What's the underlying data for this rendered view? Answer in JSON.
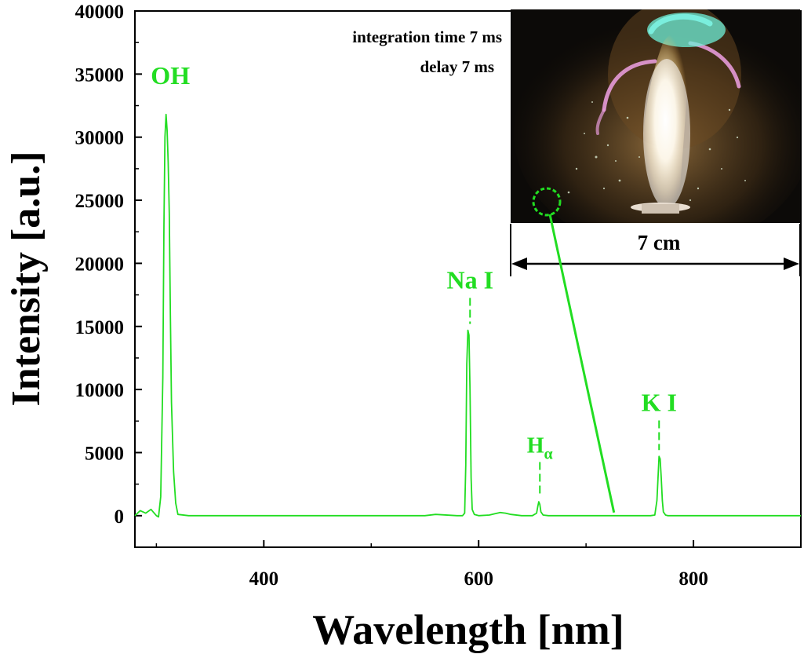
{
  "chart_data": {
    "type": "line",
    "xlabel": "Wavelength [nm]",
    "ylabel": "Intensity [a.u.]",
    "xlim": [
      280,
      900
    ],
    "ylim": [
      -2500,
      40000
    ],
    "x_ticks": [
      400,
      600,
      800
    ],
    "x_tick_labels": [
      "400",
      "600",
      "800"
    ],
    "y_ticks": [
      0,
      5000,
      10000,
      15000,
      20000,
      25000,
      30000,
      35000,
      40000
    ],
    "y_tick_labels": [
      "0",
      "5000",
      "10000",
      "15000",
      "20000",
      "25000",
      "30000",
      "35000",
      "40000"
    ],
    "grid": false,
    "series": [
      {
        "color": "#22dd22",
        "x": [
          280,
          285,
          290,
          295,
          300,
          302,
          304,
          306,
          307,
          308,
          309,
          310,
          311,
          312,
          313,
          314,
          316,
          318,
          320,
          330,
          400,
          500,
          550,
          560,
          580,
          585,
          587,
          588,
          589,
          590,
          591,
          592,
          593,
          594,
          596,
          600,
          610,
          615,
          620,
          625,
          630,
          640,
          650,
          654,
          655,
          656,
          657,
          658,
          660,
          665,
          700,
          750,
          760,
          764,
          766,
          767,
          768,
          769,
          770,
          771,
          772,
          774,
          776,
          800,
          900
        ],
        "y": [
          0,
          400,
          200,
          500,
          0,
          -100,
          1500,
          11000,
          23000,
          30000,
          31800,
          30500,
          28000,
          24000,
          16000,
          9000,
          3500,
          1000,
          100,
          0,
          0,
          0,
          0,
          100,
          0,
          0,
          200,
          4000,
          12000,
          14700,
          14300,
          10000,
          3000,
          500,
          100,
          0,
          50,
          150,
          250,
          200,
          100,
          0,
          0,
          200,
          700,
          1100,
          900,
          300,
          50,
          0,
          0,
          0,
          0,
          50,
          1200,
          3000,
          4700,
          4500,
          3000,
          1200,
          300,
          50,
          0,
          0,
          0
        ]
      }
    ],
    "annotations": [
      {
        "text": "OH",
        "x": 313,
        "y": 34200
      },
      {
        "text": "Na I",
        "x": 592,
        "y": 18000
      },
      {
        "text": "H",
        "sub": "α",
        "x": 657,
        "y": 5000
      },
      {
        "text": "K I",
        "x": 768,
        "y": 8300
      }
    ],
    "notes": [
      "integration time 7 ms",
      "delay 7 ms"
    ],
    "inset": {
      "scale_label": "7 cm",
      "pointer_to_x": 726,
      "pointer_to_y": 0
    }
  }
}
